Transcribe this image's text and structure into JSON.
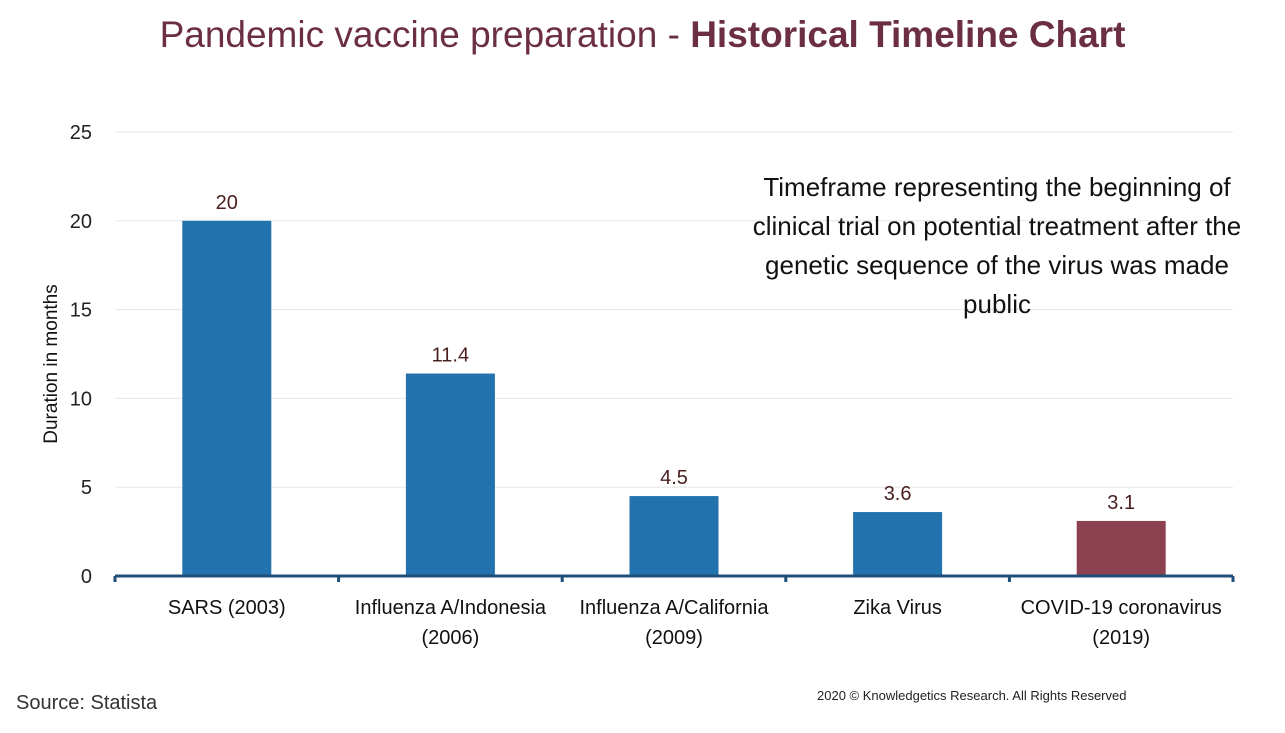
{
  "title": {
    "regular": "Pandemic vaccine preparation - ",
    "bold": "Historical  Timeline Chart"
  },
  "chart_data": {
    "type": "bar",
    "categories": [
      [
        "SARS (2003)"
      ],
      [
        "Influenza A/Indonesia",
        "(2006)"
      ],
      [
        "Influenza A/California",
        "(2009)"
      ],
      [
        "Zika Virus"
      ],
      [
        "COVID-19 coronavirus",
        "(2019)"
      ]
    ],
    "values": [
      20,
      11.4,
      4.5,
      3.6,
      3.1
    ],
    "data_labels": [
      "20",
      "11.4",
      "4.5",
      "3.6",
      "3.1"
    ],
    "ylabel": "Duration in months",
    "xlabel": "",
    "ylim": [
      0,
      25
    ],
    "yticks": [
      0,
      5,
      10,
      15,
      20,
      25
    ],
    "grid": true,
    "bar_colors": [
      "#2272ad",
      "#2272ad",
      "#2272ad",
      "#2272ad",
      "#8b4150"
    ],
    "label_color": "#4a2020",
    "axis_color": "#1f4e79",
    "annotation": "Timeframe  representing the beginning of clinical trial on potential treatment after the genetic sequence of the virus was made public"
  },
  "footer": {
    "source": "Source: Statista",
    "copyright": "2020 © Knowledgetics Research. All Rights Reserved"
  }
}
